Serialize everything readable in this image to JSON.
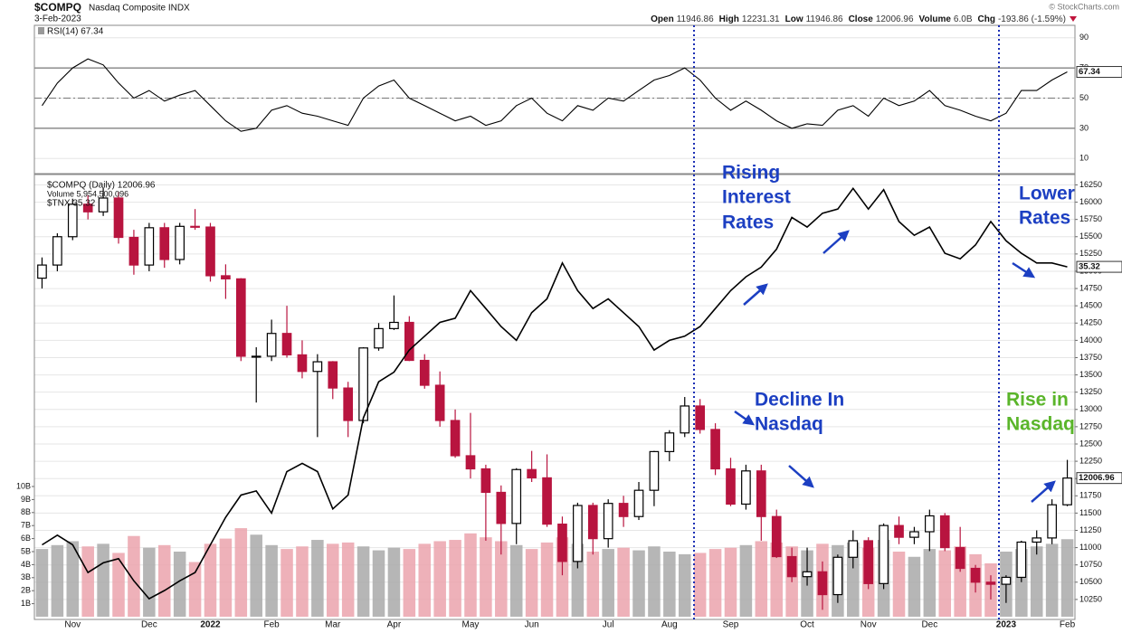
{
  "chart_data": {
    "type": "candlestick",
    "title": "$COMPQ",
    "subtitle": "Nasdaq Composite INDX",
    "date": "3-Feb-2023",
    "quote": [
      [
        "Open",
        "11946.86"
      ],
      [
        "High",
        "12231.31"
      ],
      [
        "Low",
        "11946.86"
      ],
      [
        "Close",
        "12006.96"
      ],
      [
        "Volume",
        "6.0B"
      ],
      [
        "Chg",
        "-193.86 (-1.59%)"
      ]
    ],
    "watermark": "© StockCharts.com",
    "legend": [
      "$COMPQ (Daily) 12006.96",
      "Volume 5,954,500,096",
      "$TNX 35.32"
    ],
    "categories": [
      null,
      null,
      "Nov",
      null,
      null,
      null,
      null,
      "Dec",
      null,
      null,
      null,
      "2022",
      null,
      null,
      null,
      "Feb",
      null,
      null,
      null,
      "Mar",
      null,
      null,
      null,
      "Apr",
      null,
      null,
      null,
      null,
      "May",
      null,
      null,
      null,
      "Jun",
      null,
      null,
      null,
      null,
      "Jul",
      null,
      null,
      null,
      "Aug",
      null,
      null,
      null,
      "Sep",
      null,
      null,
      null,
      null,
      "Oct",
      null,
      null,
      null,
      "Nov",
      null,
      null,
      null,
      "Dec",
      null,
      null,
      null,
      null,
      "2023",
      null,
      null,
      null,
      "Feb"
    ],
    "open": [
      14900,
      15090,
      15500,
      15970,
      15860,
      16060,
      15490,
      15090,
      15630,
      15170,
      15650,
      15640,
      14935,
      14890,
      13770,
      13770,
      14100,
      13790,
      13550,
      13690,
      13310,
      12840,
      13890,
      14170,
      14260,
      13710,
      13350,
      12840,
      12330,
      12140,
      11800,
      11350,
      12130,
      12010,
      11340,
      10800,
      11610,
      11130,
      11640,
      11450,
      11830,
      12390,
      12660,
      13050,
      12710,
      12140,
      11630,
      12110,
      11450,
      10870,
      10580,
      10650,
      10320,
      10860,
      11100,
      10480,
      11320,
      11150,
      11230,
      11460,
      11000,
      10700,
      10500,
      10470,
      10570,
      11080,
      11140,
      11620
    ],
    "high": [
      15200,
      15550,
      16050,
      16100,
      16210,
      16150,
      15600,
      15700,
      15700,
      15700,
      15900,
      15700,
      15100,
      14900,
      13900,
      14300,
      14500,
      14000,
      13800,
      13700,
      13400,
      13900,
      14250,
      14650,
      14350,
      13800,
      13550,
      13000,
      12950,
      12200,
      11900,
      12150,
      12400,
      12350,
      11450,
      11650,
      11650,
      11700,
      11750,
      11950,
      12400,
      12700,
      13180,
      13150,
      12800,
      12300,
      12200,
      12200,
      11550,
      11000,
      11000,
      10800,
      10900,
      11250,
      11150,
      11350,
      11450,
      11300,
      11550,
      11500,
      11300,
      10750,
      10600,
      10600,
      11100,
      11250,
      11700,
      12270
    ],
    "low": [
      14750,
      15000,
      15450,
      15750,
      15800,
      15400,
      14950,
      15000,
      15050,
      15100,
      15600,
      14850,
      14600,
      13700,
      13100,
      13700,
      13750,
      13450,
      12600,
      13150,
      12600,
      12800,
      13850,
      14150,
      13700,
      13300,
      12750,
      12300,
      12000,
      11100,
      10900,
      11050,
      11950,
      11300,
      10600,
      10700,
      10900,
      11000,
      11300,
      11400,
      11600,
      12250,
      12600,
      12650,
      12050,
      11600,
      11550,
      11100,
      10850,
      10500,
      10450,
      10100,
      10200,
      10700,
      10400,
      10400,
      11050,
      11050,
      10950,
      10950,
      10650,
      10350,
      10250,
      10200,
      10500,
      10900,
      11050,
      11600
    ],
    "close": [
      15090,
      15500,
      15970,
      15860,
      16060,
      15490,
      15090,
      15630,
      15170,
      15650,
      15640,
      14935,
      14890,
      13770,
      13770,
      14100,
      13790,
      13550,
      13690,
      13310,
      12840,
      13890,
      14170,
      14260,
      13710,
      13350,
      12840,
      12330,
      12140,
      11800,
      11350,
      12130,
      12010,
      11340,
      10800,
      11610,
      11130,
      11640,
      11450,
      11830,
      12390,
      12660,
      13050,
      12710,
      12140,
      11630,
      12110,
      11450,
      10870,
      10580,
      10650,
      10320,
      10860,
      11100,
      10480,
      11320,
      11150,
      11230,
      11460,
      11000,
      10700,
      10500,
      10470,
      10570,
      11080,
      11140,
      11620,
      12006.96
    ],
    "ylim": [
      10000,
      16400
    ],
    "yticks": [
      10250,
      10500,
      10750,
      11000,
      11250,
      11500,
      11750,
      12000,
      12250,
      12500,
      12750,
      13000,
      13250,
      13500,
      13750,
      14000,
      14250,
      14500,
      14750,
      15000,
      15250,
      15500,
      15750,
      16000,
      16250
    ],
    "grid": true,
    "up_color": "#000000",
    "down_color": "#b8143f",
    "volume": {
      "values": [
        5.2,
        5.5,
        5.8,
        5.4,
        5.6,
        4.9,
        6.2,
        5.3,
        5.5,
        5.0,
        4.2,
        5.6,
        6.0,
        6.8,
        6.3,
        5.5,
        5.2,
        5.4,
        5.9,
        5.6,
        5.7,
        5.4,
        5.1,
        5.3,
        5.2,
        5.6,
        5.8,
        5.9,
        6.4,
        6.1,
        5.8,
        5.5,
        5.2,
        5.7,
        6.1,
        5.6,
        5.0,
        5.2,
        5.3,
        5.1,
        5.4,
        5.0,
        4.8,
        4.9,
        5.2,
        5.3,
        5.5,
        5.8,
        5.7,
        5.4,
        5.1,
        5.6,
        5.5,
        5.7,
        5.3,
        5.9,
        5.0,
        4.6,
        5.2,
        5.1,
        5.4,
        4.8,
        4.1,
        5.0,
        5.2,
        5.4,
        5.6,
        5.9545
      ],
      "ylim": [
        0,
        10.4
      ],
      "yticks": [
        {
          "value": 1,
          "label": "1B"
        },
        {
          "value": 2,
          "label": "2B"
        },
        {
          "value": 3,
          "label": "3B"
        },
        {
          "value": 4,
          "label": "4B"
        },
        {
          "value": 5,
          "label": "5B"
        },
        {
          "value": 6,
          "label": "6B"
        },
        {
          "value": 7,
          "label": "7B"
        },
        {
          "value": 8,
          "label": "8B"
        },
        {
          "value": 9,
          "label": "9B"
        },
        {
          "value": 10,
          "label": "10B"
        }
      ],
      "up_color": "#a9a9a9",
      "down_color": "#eba3ad"
    },
    "tnx": {
      "values": [
        15.2,
        15.9,
        15.2,
        13.2,
        13.9,
        14.2,
        12.6,
        11.3,
        11.9,
        12.6,
        13.2,
        15.2,
        17.2,
        18.8,
        19.1,
        17.5,
        20.5,
        21.1,
        20.5,
        17.8,
        18.8,
        24.4,
        27.0,
        27.7,
        29.3,
        30.3,
        31.3,
        31.6,
        33.6,
        32.3,
        31.0,
        30.0,
        32.0,
        33.0,
        35.6,
        33.6,
        32.3,
        33.0,
        32.0,
        31.0,
        29.3,
        30.0,
        30.3,
        31.0,
        32.3,
        33.6,
        34.6,
        35.3,
        36.6,
        38.9,
        38.2,
        39.2,
        39.5,
        41.0,
        39.5,
        40.9,
        38.6,
        37.6,
        38.2,
        36.3,
        35.9,
        36.9,
        38.6,
        37.2,
        36.3,
        35.6,
        35.6,
        35.32
      ],
      "y2lim": [
        10,
        42
      ],
      "color": "#000000"
    },
    "rsi": {
      "label": "RSI(14) 67.34",
      "values": [
        45,
        60,
        70,
        76,
        72,
        60,
        50,
        55,
        48,
        52,
        55,
        45,
        35,
        28,
        30,
        42,
        45,
        40,
        38,
        35,
        32,
        50,
        58,
        62,
        50,
        45,
        40,
        35,
        38,
        32,
        35,
        45,
        50,
        40,
        35,
        45,
        42,
        50,
        48,
        55,
        62,
        65,
        70,
        62,
        50,
        42,
        48,
        42,
        35,
        30,
        33,
        32,
        42,
        45,
        38,
        50,
        45,
        48,
        55,
        45,
        42,
        38,
        35,
        40,
        55,
        55,
        62,
        67.34
      ],
      "ylim": [
        0,
        100
      ],
      "yticks": [
        10,
        30,
        50,
        70,
        90
      ],
      "overbought": 70,
      "oversold": 30,
      "color": "#000000"
    },
    "annotations": [
      {
        "lines": [
          "Rising",
          "Interest",
          "Rates"
        ],
        "color": "#1c3fc2"
      },
      {
        "lines": [
          "Lower",
          "Rates"
        ],
        "color": "#1c3fc2"
      },
      {
        "lines": [
          "Decline In",
          "Nasdaq"
        ],
        "color": "#1c3fc2"
      },
      {
        "lines": [
          "Rise in",
          "Nasdaq"
        ],
        "color": "#5ab52a"
      }
    ]
  }
}
